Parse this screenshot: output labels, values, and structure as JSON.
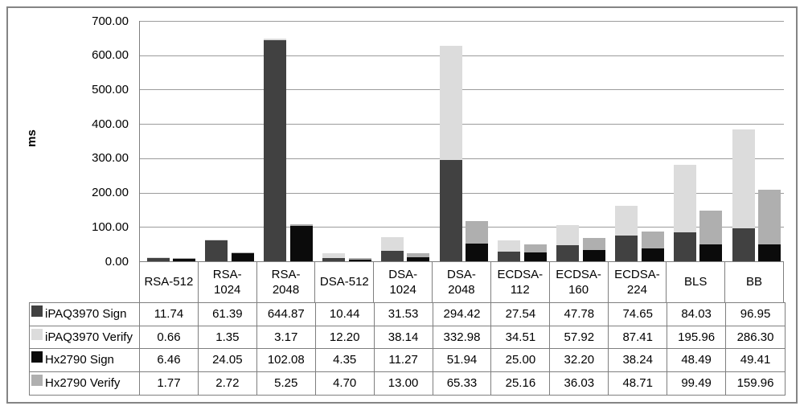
{
  "chart_data": {
    "type": "bar",
    "subtype": "two-stacks-per-category",
    "title": "",
    "xlabel": "",
    "ylabel": "ms",
    "ylim": [
      0,
      700
    ],
    "ytick_step": 100,
    "yticks": [
      "700.00",
      "600.00",
      "500.00",
      "400.00",
      "300.00",
      "200.00",
      "100.00",
      "0.00"
    ],
    "grid": true,
    "legend_position": "data-table-left-column",
    "categories": [
      "RSA-512",
      "RSA-1024",
      "RSA-2048",
      "DSA-512",
      "DSA-1024",
      "DSA-2048",
      "ECDSA-112",
      "ECDSA-160",
      "ECDSA-224",
      "BLS",
      "BB"
    ],
    "category_labels_display": [
      "RSA-512",
      "RSA-\n1024",
      "RSA-\n2048",
      "DSA-512",
      "DSA-\n1024",
      "DSA-\n2048",
      "ECDSA-\n112",
      "ECDSA-\n160",
      "ECDSA-\n224",
      "BLS",
      "BB"
    ],
    "stacks": [
      {
        "name": "iPAQ3970",
        "series_indexes": [
          0,
          1
        ]
      },
      {
        "name": "Hx2790",
        "series_indexes": [
          2,
          3
        ]
      }
    ],
    "series": [
      {
        "name": "iPAQ3970 Sign",
        "color": "#414141",
        "stack": "iPAQ3970",
        "values": [
          11.74,
          61.39,
          644.87,
          10.44,
          31.53,
          294.42,
          27.54,
          47.78,
          74.65,
          84.03,
          96.95
        ]
      },
      {
        "name": "iPAQ3970 Verify",
        "color": "#DCDCDC",
        "stack": "iPAQ3970",
        "values": [
          0.66,
          1.35,
          3.17,
          12.2,
          38.14,
          332.98,
          34.51,
          57.92,
          87.41,
          195.96,
          286.3
        ]
      },
      {
        "name": "Hx2790 Sign",
        "color": "#0B0B0B",
        "stack": "Hx2790",
        "values": [
          6.46,
          24.05,
          102.08,
          4.35,
          11.27,
          51.94,
          25.0,
          32.2,
          38.24,
          48.49,
          49.41
        ]
      },
      {
        "name": "Hx2790 Verify",
        "color": "#AFAFAF",
        "stack": "Hx2790",
        "values": [
          1.77,
          2.72,
          5.25,
          4.7,
          13.0,
          65.33,
          25.16,
          36.03,
          48.71,
          99.49,
          159.96
        ]
      }
    ],
    "value_decimals": 2,
    "colors": {
      "frame_border": "#848484",
      "axis_line": "#7f7f7f",
      "gridline": "#9c9c9c",
      "table_border": "#7f7f7f",
      "text": "#000000"
    }
  }
}
